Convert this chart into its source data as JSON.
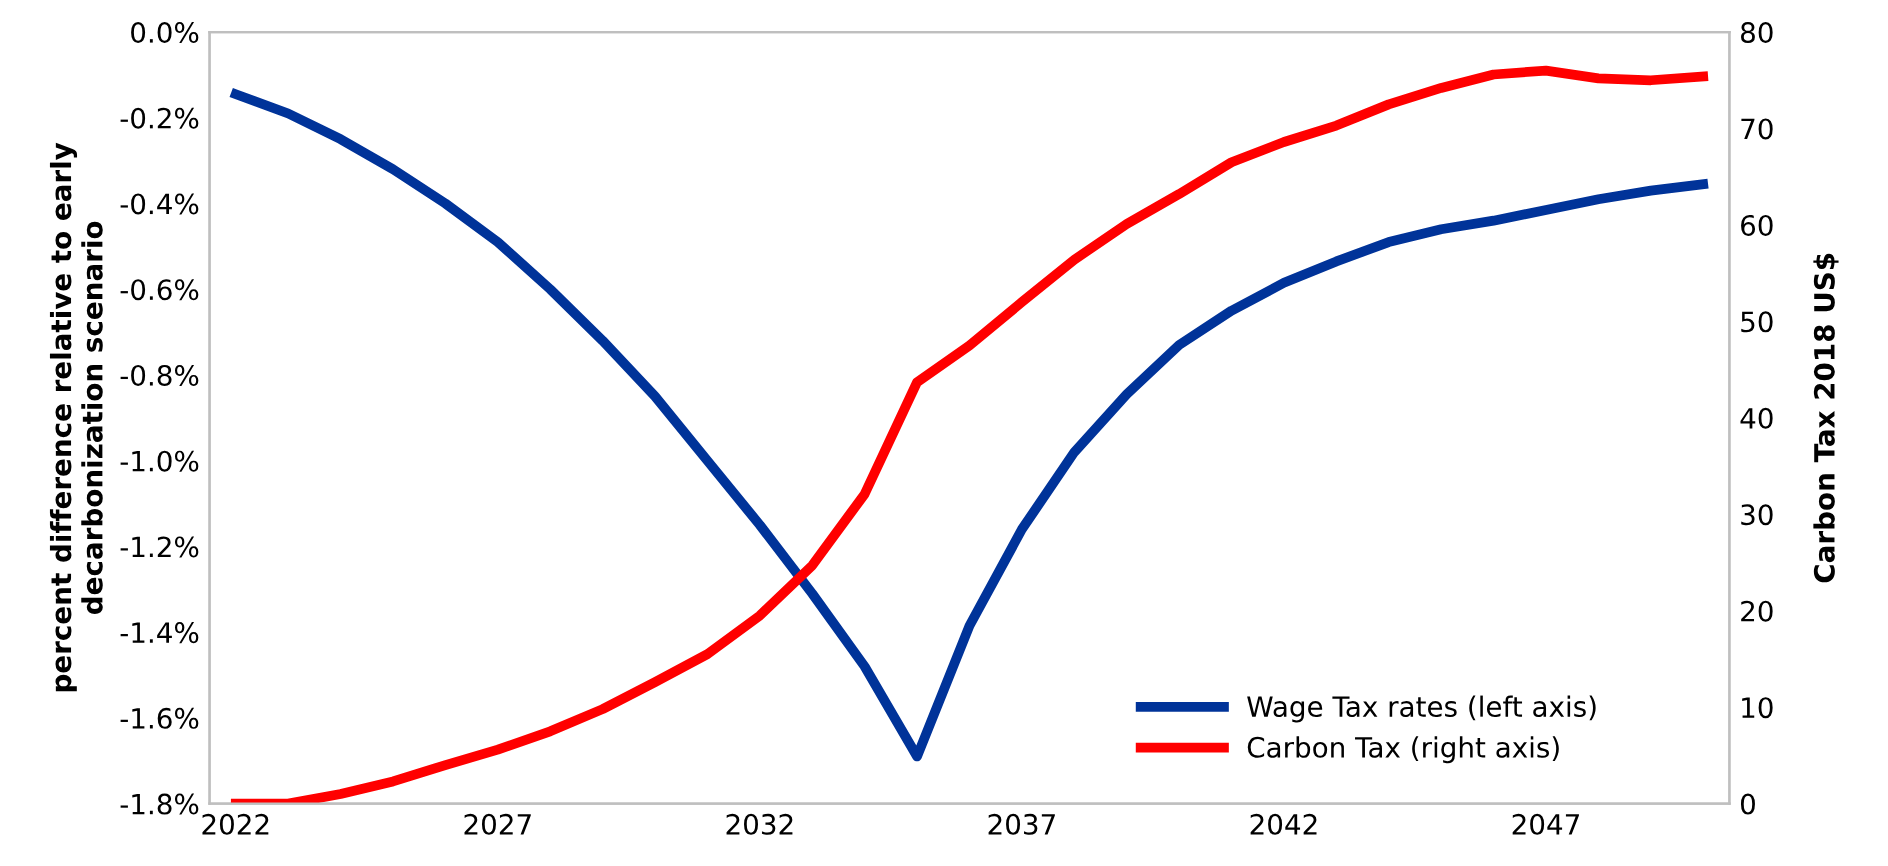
{
  "chart_data": {
    "type": "line",
    "ylabel": "percent difference relative to early\ndecarbonization scenario",
    "y2label": "Carbon Tax 2018 US$",
    "x": [
      2022,
      2023,
      2024,
      2025,
      2026,
      2027,
      2028,
      2029,
      2030,
      2031,
      2032,
      2033,
      2034,
      2035,
      2036,
      2037,
      2038,
      2039,
      2040,
      2041,
      2042,
      2043,
      2044,
      2045,
      2046,
      2047,
      2048,
      2049,
      2050
    ],
    "series": [
      {
        "name": "Wage Tax rates (left axis)",
        "color": "#003399",
        "values": [
          -0.145,
          -0.19,
          -0.25,
          -0.32,
          -0.4,
          -0.49,
          -0.6,
          -0.72,
          -0.85,
          -1.0,
          -1.15,
          -1.31,
          -1.48,
          -1.69,
          -1.385,
          -1.16,
          -0.98,
          -0.845,
          -0.73,
          -0.65,
          -0.585,
          -0.535,
          -0.49,
          -0.46,
          -0.44,
          -0.415,
          -0.39,
          -0.37,
          -0.355
        ]
      },
      {
        "name": "Carbon Tax (right axis)",
        "color": "#ff0000",
        "axis": "y2",
        "values": [
          0,
          0,
          1.0,
          2.3,
          4.0,
          5.6,
          7.5,
          9.8,
          12.6,
          15.5,
          19.5,
          24.7,
          32.1,
          43.7,
          47.5,
          52,
          56.4,
          60.1,
          63.2,
          66.5,
          68.6,
          70.3,
          72.5,
          74.2,
          75.6,
          76.0,
          75.2,
          75.0,
          75.4
        ]
      }
    ],
    "xlim": [
      2021.5,
      2050.5
    ],
    "xticks": [
      2022,
      2027,
      2032,
      2037,
      2042,
      2047
    ],
    "ylim": [
      -1.8,
      0
    ],
    "yticks": [
      {
        "value": -1.8,
        "label": "-1.8%"
      },
      {
        "value": -1.6,
        "label": "-1.6%"
      },
      {
        "value": -1.4,
        "label": "-1.4%"
      },
      {
        "value": -1.2,
        "label": "-1.2%"
      },
      {
        "value": -1.0,
        "label": "-1.0%"
      },
      {
        "value": -0.8,
        "label": "-0.8%"
      },
      {
        "value": -0.6,
        "label": "-0.6%"
      },
      {
        "value": -0.4,
        "label": "-0.4%"
      },
      {
        "value": -0.2,
        "label": "-0.2%"
      },
      {
        "value": 0,
        "label": "0.0%"
      }
    ],
    "y2lim": [
      0,
      80
    ],
    "y2ticks": [
      0,
      10,
      20,
      30,
      40,
      50,
      60,
      70,
      80
    ],
    "grid": false,
    "legend": "bottom right",
    "line_style": "solid",
    "marker": "none"
  }
}
